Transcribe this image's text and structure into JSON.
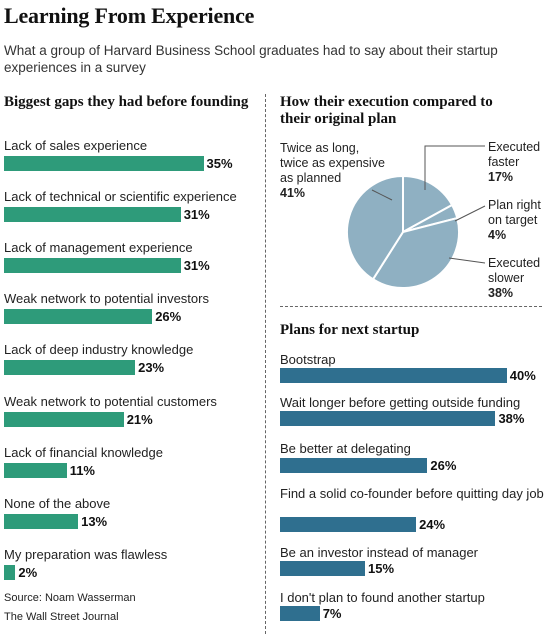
{
  "title": "Learning From Experience",
  "subtitle": "What a group of Harvard Business School graduates had to say about their startup experiences in a survey",
  "source_line1": "Source: Noam Wasserman",
  "source_line2": "The Wall Street Journal",
  "colors": {
    "gaps_bar": "#2e9b7a",
    "plans_bar": "#2f6f8f",
    "pie_fill": "#8fb0c2",
    "pie_stroke": "#ffffff"
  },
  "chart_data": [
    {
      "type": "bar",
      "title": "Biggest gaps they had before founding",
      "categories": [
        "Lack of sales experience",
        "Lack of technical or scientific experience",
        "Lack of management experience",
        "Weak network to potential investors",
        "Lack of deep industry knowledge",
        "Weak network to potential customers",
        "Lack of financial knowledge",
        "None of the above",
        "My preparation was flawless"
      ],
      "values": [
        35,
        31,
        31,
        26,
        23,
        21,
        11,
        13,
        2
      ],
      "value_labels": [
        "35%",
        "31%",
        "31%",
        "26%",
        "23%",
        "21%",
        "11%",
        "13%",
        "2%"
      ],
      "unit": "%"
    },
    {
      "type": "pie",
      "title": "How their execution compared to their original plan",
      "slices": [
        {
          "label": "Executed faster",
          "value": 17,
          "value_label": "17%"
        },
        {
          "label": "Plan right on target",
          "value": 4,
          "value_label": "4%"
        },
        {
          "label": "Executed slower",
          "value": 38,
          "value_label": "38%"
        },
        {
          "label": "Twice as long, twice as expensive as planned",
          "value": 41,
          "value_label": "41%"
        }
      ]
    },
    {
      "type": "bar",
      "title": "Plans for next startup",
      "categories": [
        "Bootstrap",
        "Wait longer before getting outside funding",
        "Be better at delegating",
        "Find a solid co-founder before quitting day job",
        "Be an investor instead of manager",
        "I don't plan to found another startup"
      ],
      "values": [
        40,
        38,
        26,
        24,
        15,
        7
      ],
      "value_labels": [
        "40%",
        "38%",
        "26%",
        "24%",
        "15%",
        "7%"
      ],
      "unit": "%"
    }
  ]
}
